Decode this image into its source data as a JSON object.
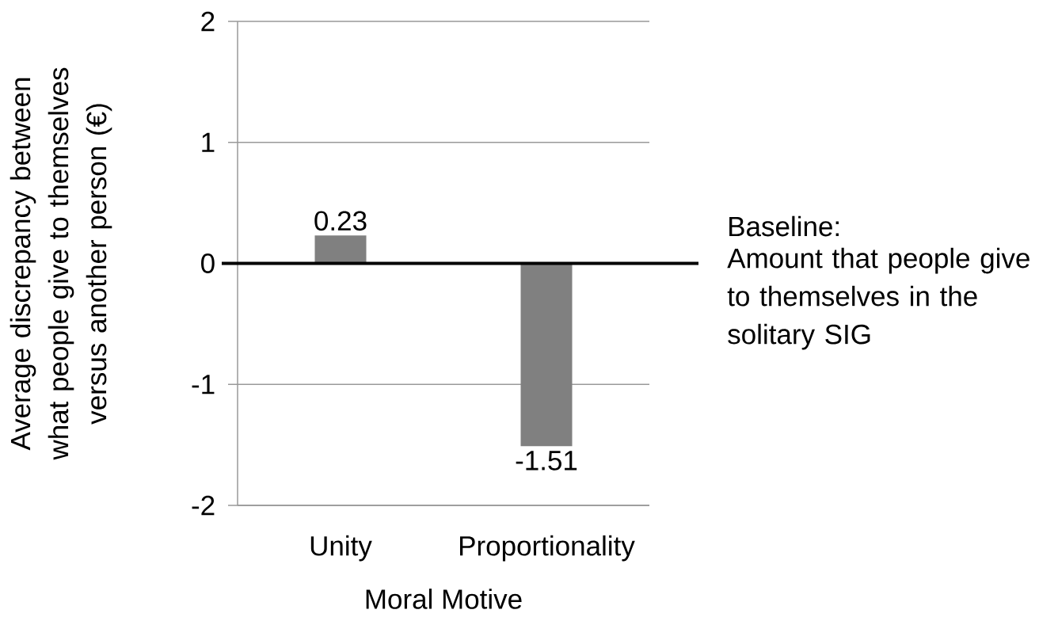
{
  "chart_data": {
    "type": "bar",
    "xlabel": "Moral Motive",
    "ylabel": "Average discrepancy between what people give to themselves versus another person (€)",
    "categories": [
      "Unity",
      "Proportionality"
    ],
    "values": [
      0.23,
      -1.51
    ],
    "value_labels": [
      "0.23",
      "-1.51"
    ],
    "color": "#808080",
    "ylim": [
      -2,
      2
    ],
    "yticks": [
      -2,
      -1,
      0,
      1,
      2
    ],
    "grid": "y",
    "ref_lines": [
      {
        "axis": "y",
        "value": 0,
        "label": "Baseline:",
        "color": "#000000"
      }
    ],
    "annotations": [
      "Amount that people give to themselves in the solitary SIG"
    ]
  }
}
